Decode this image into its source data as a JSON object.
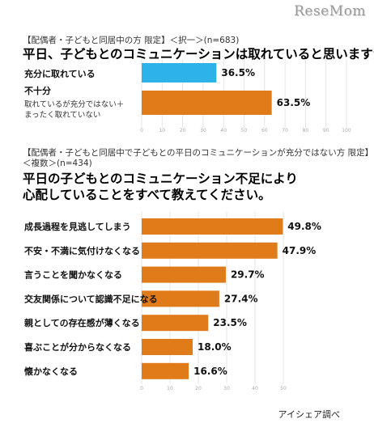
{
  "site": {
    "watermark": "ReseMom"
  },
  "chart_data": [
    {
      "type": "bar",
      "orientation": "horizontal",
      "note": "【配偶者・子どもと同居中の方 限定】＜択一＞(n=683)",
      "title": "平日、子どもとのコミュニケーションは取れていると思いますか?",
      "categories": [
        {
          "label": "充分に取れている",
          "sub": []
        },
        {
          "label": "不十分",
          "sub": [
            "取れているが充分ではない＋",
            "まったく取れていない"
          ]
        }
      ],
      "values": [
        36.5,
        63.5
      ],
      "value_labels": [
        "36.5%",
        "63.5%"
      ],
      "colors": [
        "#2eb3e8",
        "#e07b1a"
      ],
      "xlim": [
        0,
        100
      ],
      "ticks": [
        0,
        10,
        20,
        30,
        40,
        50,
        60,
        70,
        80,
        90,
        100
      ],
      "grid": true
    },
    {
      "type": "bar",
      "orientation": "horizontal",
      "note": "【配偶者・子どもと同居中で子どもとの平日のコミュニケーションが充分ではない方 限定】",
      "note2": "＜複数＞(n=434)",
      "title": "平日の子どもとのコミュニケーション不足により",
      "title2": "心配していることをすべて教えてください。",
      "categories": [
        {
          "label": "成長過程を見逃してしまう"
        },
        {
          "label": "不安・不満に気付けなくなる"
        },
        {
          "label": "言うことを聞かなくなる"
        },
        {
          "label": "交友関係について認識不足になる"
        },
        {
          "label": "親としての存在感が薄くなる"
        },
        {
          "label": "喜ぶことが分からなくなる"
        },
        {
          "label": "懐かなくなる"
        }
      ],
      "values": [
        49.8,
        47.9,
        29.7,
        27.4,
        23.5,
        18.0,
        16.6
      ],
      "value_labels": [
        "49.8%",
        "47.9%",
        "29.7%",
        "27.4%",
        "23.5%",
        "18.0%",
        "16.6%"
      ],
      "colors": [
        "#e07b1a"
      ],
      "xlim": [
        0,
        60
      ],
      "ticks": [
        0,
        10,
        20,
        30,
        40,
        50
      ],
      "grid": true
    }
  ],
  "source": "アイシェア調べ"
}
